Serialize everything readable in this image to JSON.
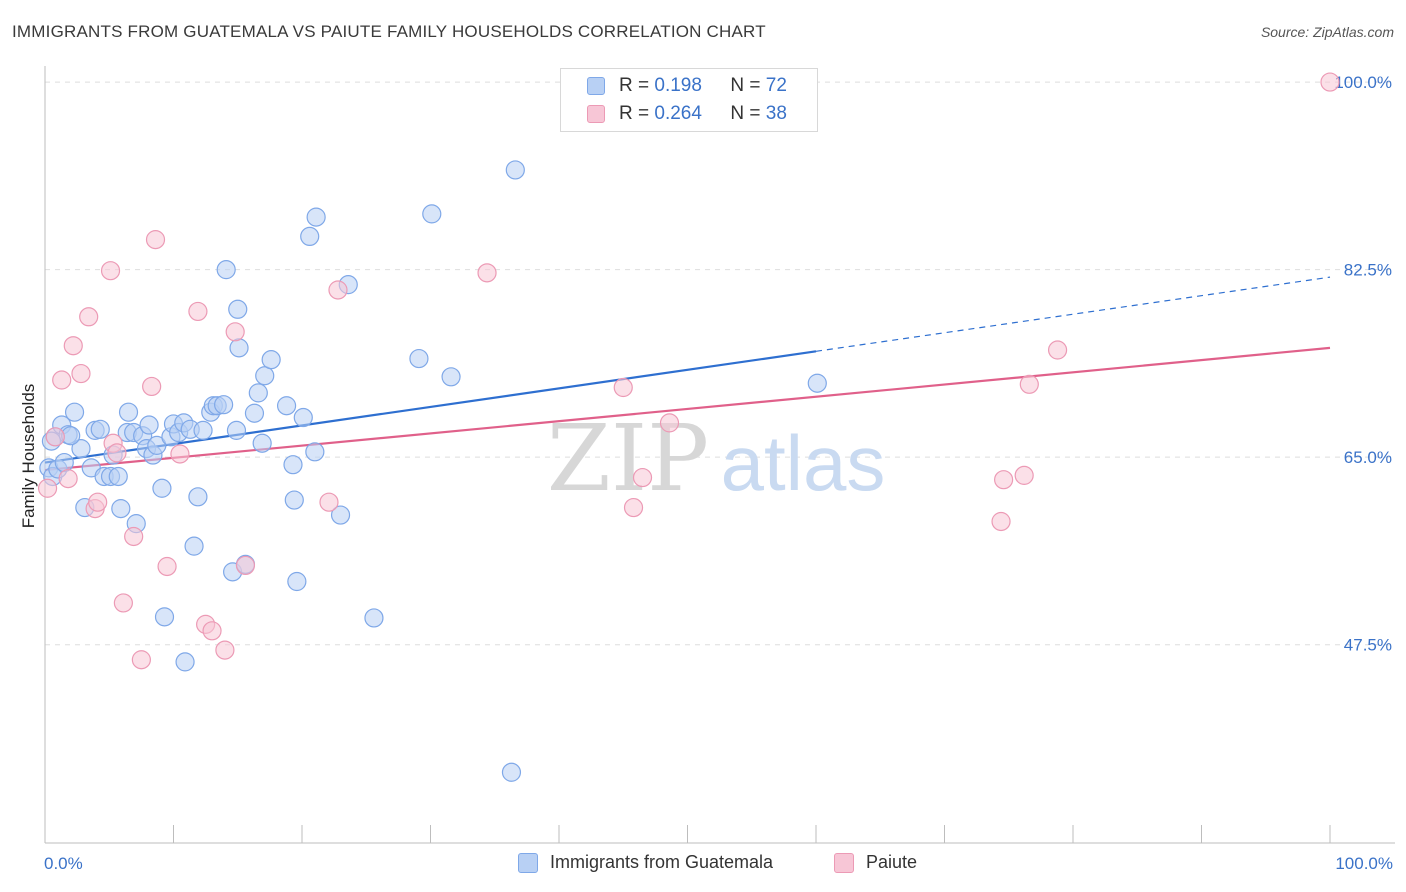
{
  "title": "IMMIGRANTS FROM GUATEMALA VS PAIUTE FAMILY HOUSEHOLDS CORRELATION CHART",
  "source": "Source: ZipAtlas.com",
  "watermark": {
    "zip": "ZIP",
    "atlas": "atlas"
  },
  "legend": {
    "rows": [
      {
        "r_label": "R =",
        "r_value": "0.198",
        "n_label": "N =",
        "n_value": "72"
      },
      {
        "r_label": "R =",
        "r_value": "0.264",
        "n_label": "N =",
        "n_value": "38"
      }
    ]
  },
  "chart_data": {
    "type": "scatter",
    "title": "IMMIGRANTS FROM GUATEMALA VS PAIUTE FAMILY HOUSEHOLDS CORRELATION CHART",
    "xlabel": "",
    "ylabel": "Family Households",
    "xlim": [
      0,
      100
    ],
    "ylim": [
      29,
      101.5
    ],
    "x_tick_labels": [
      "0.0%",
      "100.0%"
    ],
    "y_ticks": [
      47.5,
      65.0,
      82.5,
      100.0
    ],
    "y_tick_labels": [
      "47.5%",
      "65.0%",
      "82.5%",
      "100.0%"
    ],
    "grid": true,
    "legend_position": "top-center",
    "series": [
      {
        "name": "Immigrants from Guatemala",
        "color": "#7fa8e8",
        "fill": "#b8d0f4",
        "line_color": "#2e6fd0",
        "R": 0.198,
        "N": 72,
        "trend": {
          "x0": 0,
          "y0": 64.5,
          "x1": 100,
          "y1": 81.8,
          "solid_until": 60
        },
        "points": [
          [
            0.3,
            64.0
          ],
          [
            0.6,
            63.2
          ],
          [
            0.8,
            66.9
          ],
          [
            1.0,
            63.9
          ],
          [
            1.3,
            68.0
          ],
          [
            1.5,
            64.5
          ],
          [
            1.8,
            67.1
          ],
          [
            2.3,
            69.2
          ],
          [
            2.8,
            65.8
          ],
          [
            3.1,
            60.3
          ],
          [
            3.6,
            64.0
          ],
          [
            3.9,
            67.5
          ],
          [
            4.3,
            67.6
          ],
          [
            4.6,
            63.2
          ],
          [
            5.1,
            63.2
          ],
          [
            5.3,
            65.2
          ],
          [
            5.7,
            63.2
          ],
          [
            5.9,
            60.2
          ],
          [
            6.4,
            67.3
          ],
          [
            6.5,
            69.2
          ],
          [
            6.9,
            67.3
          ],
          [
            7.1,
            58.8
          ],
          [
            7.6,
            67.0
          ],
          [
            7.9,
            65.8
          ],
          [
            8.1,
            68.0
          ],
          [
            8.4,
            65.2
          ],
          [
            8.7,
            66.1
          ],
          [
            9.1,
            62.1
          ],
          [
            9.3,
            50.1
          ],
          [
            9.8,
            66.9
          ],
          [
            10.0,
            68.1
          ],
          [
            10.4,
            67.3
          ],
          [
            10.8,
            68.2
          ],
          [
            10.9,
            45.9
          ],
          [
            11.3,
            67.6
          ],
          [
            11.6,
            56.7
          ],
          [
            11.9,
            61.3
          ],
          [
            12.3,
            67.5
          ],
          [
            12.9,
            69.2
          ],
          [
            13.1,
            69.8
          ],
          [
            13.4,
            69.8
          ],
          [
            13.9,
            69.9
          ],
          [
            14.1,
            82.5
          ],
          [
            14.6,
            54.3
          ],
          [
            14.9,
            67.5
          ],
          [
            15.0,
            78.8
          ],
          [
            15.1,
            75.2
          ],
          [
            15.6,
            55.0
          ],
          [
            16.3,
            69.1
          ],
          [
            16.6,
            71.0
          ],
          [
            16.9,
            66.3
          ],
          [
            17.1,
            72.6
          ],
          [
            17.6,
            74.1
          ],
          [
            18.8,
            69.8
          ],
          [
            19.3,
            64.3
          ],
          [
            19.4,
            61.0
          ],
          [
            19.6,
            53.4
          ],
          [
            20.1,
            68.7
          ],
          [
            20.6,
            85.6
          ],
          [
            21.1,
            87.4
          ],
          [
            21.0,
            65.5
          ],
          [
            23.0,
            59.6
          ],
          [
            23.6,
            81.1
          ],
          [
            25.6,
            50.0
          ],
          [
            29.1,
            74.2
          ],
          [
            30.1,
            87.7
          ],
          [
            31.6,
            72.5
          ],
          [
            36.6,
            91.8
          ],
          [
            36.3,
            35.6
          ],
          [
            60.1,
            71.9
          ],
          [
            0.5,
            66.5
          ],
          [
            2.0,
            67.0
          ]
        ]
      },
      {
        "name": "Paiute",
        "color": "#ec9ab5",
        "fill": "#f7c6d6",
        "line_color": "#e0608a",
        "R": 0.264,
        "N": 38,
        "trend": {
          "x0": 0,
          "y0": 63.8,
          "x1": 100,
          "y1": 75.2,
          "solid_until": 100
        },
        "points": [
          [
            0.2,
            62.1
          ],
          [
            0.8,
            66.9
          ],
          [
            1.3,
            72.2
          ],
          [
            1.8,
            63.0
          ],
          [
            2.2,
            75.4
          ],
          [
            2.8,
            72.8
          ],
          [
            3.4,
            78.1
          ],
          [
            3.9,
            60.2
          ],
          [
            4.1,
            60.8
          ],
          [
            5.1,
            82.4
          ],
          [
            5.3,
            66.3
          ],
          [
            5.6,
            65.4
          ],
          [
            6.1,
            51.4
          ],
          [
            6.9,
            57.6
          ],
          [
            7.5,
            46.1
          ],
          [
            8.3,
            71.6
          ],
          [
            8.6,
            85.3
          ],
          [
            9.5,
            54.8
          ],
          [
            10.5,
            65.3
          ],
          [
            11.9,
            78.6
          ],
          [
            12.5,
            49.4
          ],
          [
            13.0,
            48.8
          ],
          [
            14.0,
            47.0
          ],
          [
            14.8,
            76.7
          ],
          [
            15.6,
            54.9
          ],
          [
            22.1,
            60.8
          ],
          [
            22.8,
            80.6
          ],
          [
            34.4,
            82.2
          ],
          [
            45.0,
            71.5
          ],
          [
            45.8,
            60.3
          ],
          [
            46.5,
            63.1
          ],
          [
            48.6,
            68.2
          ],
          [
            74.4,
            59.0
          ],
          [
            74.6,
            62.9
          ],
          [
            76.2,
            63.3
          ],
          [
            76.6,
            71.8
          ],
          [
            78.8,
            75.0
          ],
          [
            100.0,
            100.0
          ]
        ]
      }
    ]
  }
}
